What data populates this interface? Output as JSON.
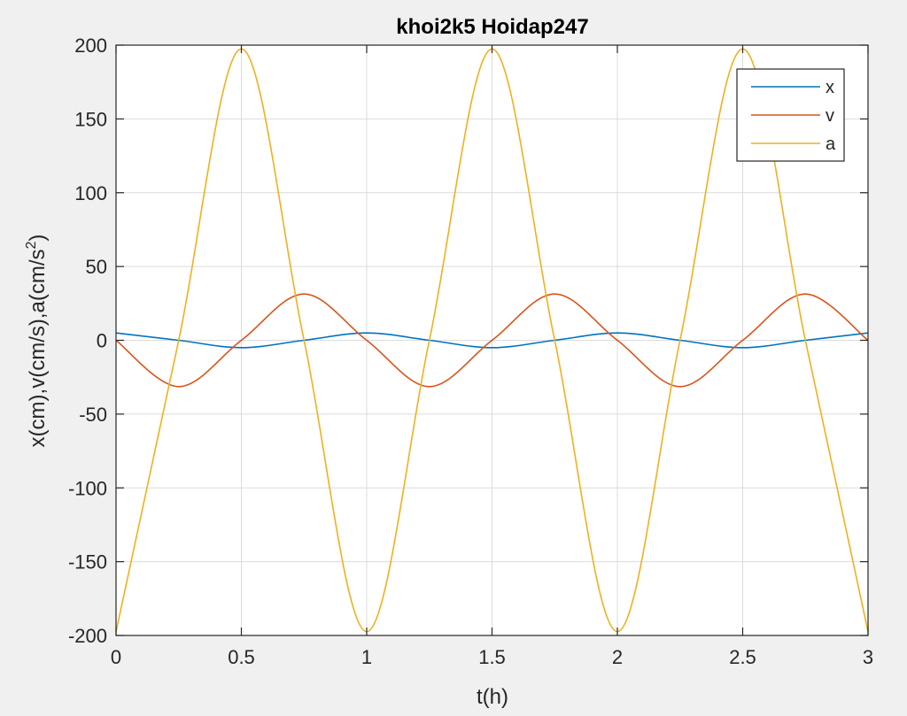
{
  "window": {
    "background": "#f0f0f0"
  },
  "chart_data": {
    "type": "line",
    "title": "khoi2k5 Hoidap247",
    "xlabel": "t(h)",
    "ylabel_main": "x(cm),v(cm/s),a(cm/s",
    "ylabel_sup": "2",
    "ylabel_close": ")",
    "xlim": [
      0,
      3
    ],
    "ylim": [
      -200,
      200
    ],
    "xticks": [
      0,
      0.5,
      1,
      1.5,
      2,
      2.5,
      3
    ],
    "xtick_labels": [
      "0",
      "0.5",
      "1",
      "1.5",
      "2",
      "2.5",
      "3"
    ],
    "yticks": [
      -200,
      -150,
      -100,
      -50,
      0,
      50,
      100,
      150,
      200
    ],
    "ytick_labels": [
      "-200",
      "-150",
      "-100",
      "-50",
      "0",
      "50",
      "100",
      "150",
      "200"
    ],
    "grid": true,
    "legend_position": "top-right",
    "series": [
      {
        "name": "x",
        "color": "#0072BD",
        "x": [
          0,
          0.25,
          0.5,
          0.75,
          1,
          1.25,
          1.5,
          1.75,
          2,
          2.25,
          2.5,
          2.75,
          3
        ],
        "values": [
          5,
          0,
          -5,
          0,
          5,
          0,
          -5,
          0,
          5,
          0,
          -5,
          0,
          5
        ]
      },
      {
        "name": "v",
        "color": "#D95319",
        "x": [
          0,
          0.25,
          0.5,
          0.75,
          1,
          1.25,
          1.5,
          1.75,
          2,
          2.25,
          2.5,
          2.75,
          3
        ],
        "values": [
          0,
          -31.4,
          0,
          31.4,
          0,
          -31.4,
          0,
          31.4,
          0,
          -31.4,
          0,
          31.4,
          0
        ]
      },
      {
        "name": "a",
        "color": "#EDB120",
        "x": [
          0,
          0.25,
          0.5,
          0.75,
          1,
          1.25,
          1.5,
          1.75,
          2,
          2.25,
          2.5,
          2.75,
          3
        ],
        "values": [
          -197.4,
          0,
          197.4,
          0,
          -197.4,
          0,
          197.4,
          0,
          -197.4,
          0,
          197.4,
          0,
          -197.4
        ]
      }
    ]
  }
}
